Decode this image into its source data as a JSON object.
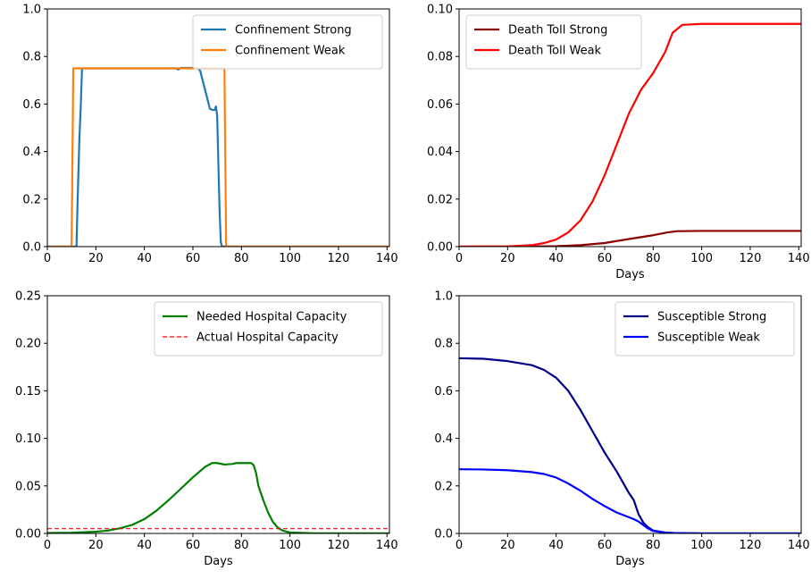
{
  "chart_data": [
    {
      "type": "line",
      "xlabel": "",
      "ylabel": "",
      "xlim": [
        0,
        141
      ],
      "ylim": [
        0,
        1.0
      ],
      "xticks": [
        0,
        20,
        40,
        60,
        80,
        100,
        120,
        140
      ],
      "yticks": [
        0.0,
        0.2,
        0.4,
        0.6,
        0.8,
        1.0
      ],
      "ytick_labels": [
        "0.0",
        "0.2",
        "0.4",
        "0.6",
        "0.8",
        "1.0"
      ],
      "legend_position": "top-right",
      "series": [
        {
          "name": "Confinement Strong",
          "color": "#1f77b4",
          "style": "solid",
          "points": [
            [
              0,
              0
            ],
            [
              12,
              0
            ],
            [
              12.5,
              0.2
            ],
            [
              13.2,
              0.45
            ],
            [
              13.8,
              0.6
            ],
            [
              14.3,
              0.75
            ],
            [
              30,
              0.75
            ],
            [
              53,
              0.75
            ],
            [
              54,
              0.745
            ],
            [
              55,
              0.752
            ],
            [
              62,
              0.752
            ],
            [
              63,
              0.74
            ],
            [
              64,
              0.7
            ],
            [
              65,
              0.66
            ],
            [
              66,
              0.62
            ],
            [
              67,
              0.58
            ],
            [
              68,
              0.575
            ],
            [
              69,
              0.575
            ],
            [
              69.5,
              0.59
            ],
            [
              70,
              0.55
            ],
            [
              70.5,
              0.35
            ],
            [
              71,
              0.15
            ],
            [
              71.5,
              0.02
            ],
            [
              72,
              0
            ],
            [
              141,
              0
            ]
          ]
        },
        {
          "name": "Confinement Weak",
          "color": "#ff7f0e",
          "style": "solid",
          "points": [
            [
              0,
              0
            ],
            [
              10,
              0
            ],
            [
              10.7,
              0.75
            ],
            [
              73,
              0.75
            ],
            [
              73.7,
              0
            ],
            [
              141,
              0
            ]
          ]
        }
      ]
    },
    {
      "type": "line",
      "xlabel": "Days",
      "ylabel": "",
      "xlim": [
        0,
        141
      ],
      "ylim": [
        0,
        0.1
      ],
      "xticks": [
        0,
        20,
        40,
        60,
        80,
        100,
        120,
        140
      ],
      "yticks": [
        0.0,
        0.02,
        0.04,
        0.06,
        0.08,
        0.1
      ],
      "ytick_labels": [
        "0.00",
        "0.02",
        "0.04",
        "0.06",
        "0.08",
        "0.10"
      ],
      "legend_position": "top-left",
      "series": [
        {
          "name": "Death Toll Strong",
          "color": "#8b0000",
          "style": "solid",
          "points": [
            [
              0,
              0
            ],
            [
              30,
              5e-05
            ],
            [
              40,
              0.0002
            ],
            [
              50,
              0.0006
            ],
            [
              60,
              0.0015
            ],
            [
              70,
              0.0032
            ],
            [
              80,
              0.0048
            ],
            [
              86,
              0.006
            ],
            [
              90,
              0.0065
            ],
            [
              100,
              0.0066
            ],
            [
              141,
              0.0066
            ]
          ]
        },
        {
          "name": "Death Toll Weak",
          "color": "#ff0000",
          "style": "solid",
          "points": [
            [
              0,
              0
            ],
            [
              20,
              0.0001
            ],
            [
              30,
              0.0006
            ],
            [
              35,
              0.0015
            ],
            [
              40,
              0.003
            ],
            [
              45,
              0.006
            ],
            [
              50,
              0.011
            ],
            [
              55,
              0.019
            ],
            [
              60,
              0.03
            ],
            [
              65,
              0.043
            ],
            [
              70,
              0.056
            ],
            [
              75,
              0.066
            ],
            [
              80,
              0.073
            ],
            [
              85,
              0.082
            ],
            [
              88,
              0.09
            ],
            [
              92,
              0.0933
            ],
            [
              100,
              0.0937
            ],
            [
              141,
              0.0937
            ]
          ]
        }
      ]
    },
    {
      "type": "line",
      "xlabel": "Days",
      "ylabel": "",
      "xlim": [
        0,
        141
      ],
      "ylim": [
        0,
        0.25
      ],
      "xticks": [
        0,
        20,
        40,
        60,
        80,
        100,
        120,
        140
      ],
      "yticks": [
        0.0,
        0.05,
        0.1,
        0.15,
        0.2,
        0.25
      ],
      "ytick_labels": [
        "0.00",
        "0.05",
        "0.10",
        "0.15",
        "0.20",
        "0.25"
      ],
      "legend_position": "top-right",
      "series": [
        {
          "name": "Needed Hospital Capacity",
          "color": "#008000",
          "style": "solid",
          "points": [
            [
              0,
              0.0005
            ],
            [
              10,
              0.0007
            ],
            [
              20,
              0.0018
            ],
            [
              25,
              0.003
            ],
            [
              30,
              0.0055
            ],
            [
              35,
              0.009
            ],
            [
              40,
              0.015
            ],
            [
              45,
              0.024
            ],
            [
              50,
              0.035
            ],
            [
              55,
              0.047
            ],
            [
              60,
              0.059
            ],
            [
              65,
              0.07
            ],
            [
              68,
              0.0742
            ],
            [
              70,
              0.074
            ],
            [
              73,
              0.0725
            ],
            [
              76,
              0.073
            ],
            [
              78,
              0.074
            ],
            [
              84,
              0.074
            ],
            [
              85,
              0.072
            ],
            [
              86,
              0.064
            ],
            [
              87,
              0.05
            ],
            [
              89,
              0.035
            ],
            [
              91,
              0.022
            ],
            [
              93,
              0.012
            ],
            [
              95,
              0.006
            ],
            [
              97,
              0.003
            ],
            [
              100,
              0.001
            ],
            [
              110,
              0.0002
            ],
            [
              141,
              0.0001
            ]
          ]
        },
        {
          "name": "Actual Hospital Capacity",
          "color": "#ff0000",
          "style": "dashed",
          "points": [
            [
              0,
              0.005
            ],
            [
              141,
              0.005
            ]
          ]
        }
      ]
    },
    {
      "type": "line",
      "xlabel": "Days",
      "ylabel": "",
      "xlim": [
        0,
        141
      ],
      "ylim": [
        0,
        1.0
      ],
      "xticks": [
        0,
        20,
        40,
        60,
        80,
        100,
        120,
        140
      ],
      "yticks": [
        0.0,
        0.2,
        0.4,
        0.6,
        0.8,
        1.0
      ],
      "ytick_labels": [
        "0.0",
        "0.2",
        "0.4",
        "0.6",
        "0.8",
        "1.0"
      ],
      "legend_position": "top-right",
      "series": [
        {
          "name": "Susceptible Strong",
          "color": "#00008b",
          "style": "solid",
          "points": [
            [
              0,
              0.737
            ],
            [
              10,
              0.735
            ],
            [
              20,
              0.725
            ],
            [
              30,
              0.708
            ],
            [
              35,
              0.688
            ],
            [
              40,
              0.655
            ],
            [
              45,
              0.6
            ],
            [
              50,
              0.52
            ],
            [
              55,
              0.43
            ],
            [
              60,
              0.34
            ],
            [
              65,
              0.26
            ],
            [
              70,
              0.17
            ],
            [
              72,
              0.14
            ],
            [
              73,
              0.11
            ],
            [
              74,
              0.08
            ],
            [
              76,
              0.045
            ],
            [
              78,
              0.025
            ],
            [
              80,
              0.012
            ],
            [
              85,
              0.004
            ],
            [
              90,
              0.001
            ],
            [
              100,
              0.0003
            ],
            [
              141,
              0.0002
            ]
          ]
        },
        {
          "name": "Susceptible Weak",
          "color": "#0000ff",
          "style": "solid",
          "points": [
            [
              0,
              0.27
            ],
            [
              10,
              0.269
            ],
            [
              20,
              0.266
            ],
            [
              30,
              0.258
            ],
            [
              35,
              0.25
            ],
            [
              40,
              0.235
            ],
            [
              45,
              0.21
            ],
            [
              50,
              0.18
            ],
            [
              55,
              0.145
            ],
            [
              60,
              0.115
            ],
            [
              65,
              0.088
            ],
            [
              70,
              0.068
            ],
            [
              72,
              0.06
            ],
            [
              74,
              0.05
            ],
            [
              76,
              0.035
            ],
            [
              78,
              0.02
            ],
            [
              80,
              0.01
            ],
            [
              85,
              0.003
            ],
            [
              90,
              0.001
            ],
            [
              100,
              0.0002
            ],
            [
              141,
              0.0001
            ]
          ]
        }
      ]
    }
  ]
}
